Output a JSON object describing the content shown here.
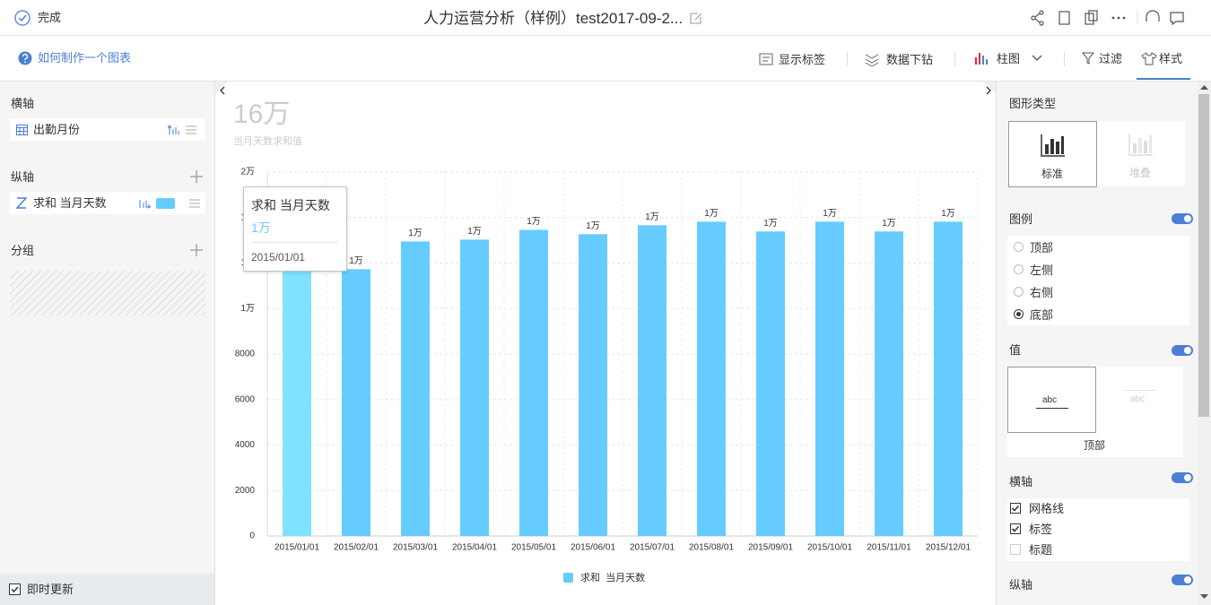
{
  "top_bar": {
    "done": "完成",
    "title": "人力运营分析（样例）test2017-09-2..."
  },
  "toolbar": {
    "help": "如何制作一个图表",
    "show_labels": "显示标签",
    "drilldown": "数据下钻",
    "chart_type": "柱图",
    "filter": "过滤",
    "style": "样式"
  },
  "left_panel": {
    "x_axis": {
      "title": "横轴",
      "field": "出勤月份"
    },
    "y_axis": {
      "title": "纵轴",
      "field": "求和 当月天数"
    },
    "group": {
      "title": "分组"
    },
    "auto_update": "即时更新"
  },
  "chart_data": {
    "type": "bar",
    "summary": "16万",
    "subtitle": "当月天数求和值",
    "categories": [
      "2015/01/01",
      "2015/02/01",
      "2015/03/01",
      "2015/04/01",
      "2015/05/01",
      "2015/06/01",
      "2015/07/01",
      "2015/08/01",
      "2015/09/01",
      "2015/10/01",
      "2015/11/01",
      "2015/12/01"
    ],
    "series": [
      {
        "name": "求和  当月天数",
        "color": "#66ccff",
        "highlight_color": "#7fe3ff",
        "values": [
          12000,
          11730,
          12950,
          13030,
          13460,
          13270,
          13660,
          13820,
          13390,
          13820,
          13390,
          13820
        ],
        "value_labels": [
          "1万",
          "1万",
          "1万",
          "1万",
          "1万",
          "1万",
          "1万",
          "1万",
          "1万",
          "1万",
          "1万",
          "1万"
        ]
      }
    ],
    "ylim": [
      0,
      16000
    ],
    "yticks": [
      0,
      2000,
      4000,
      6000,
      8000,
      {
        "value": 10000,
        "label": "1万"
      },
      {
        "value": 12000,
        "label": "1万"
      },
      {
        "value": 14000,
        "label": "1万"
      },
      {
        "value": 16000,
        "label": "2万"
      }
    ],
    "grid": true,
    "legend": "bottom",
    "tooltip": {
      "series_name": "求和 当月天数",
      "value_label": "1万",
      "category": "2015/01/01"
    }
  },
  "right_panel": {
    "chart_type": {
      "title": "图形类型",
      "options": [
        "标准",
        "堆叠"
      ]
    },
    "legend": {
      "title": "图例",
      "options": [
        "顶部",
        "左侧",
        "右侧",
        "底部"
      ],
      "selected": 3
    },
    "value": {
      "title": "值",
      "samples": [
        "abc",
        "abc"
      ],
      "position": "顶部"
    },
    "x_axis": {
      "title": "横轴",
      "options": [
        "网格线",
        "标签",
        "标题"
      ],
      "checked": [
        true,
        true,
        false
      ]
    },
    "y_axis": {
      "title": "纵轴"
    }
  }
}
